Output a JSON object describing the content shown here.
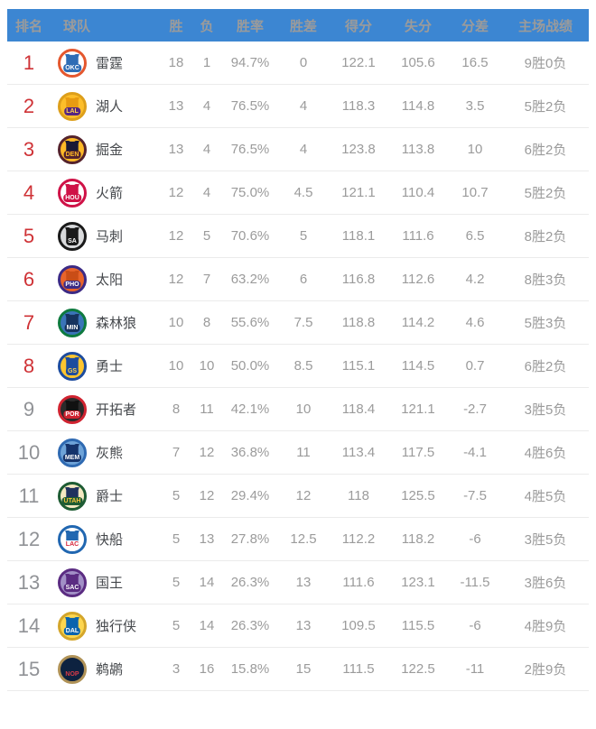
{
  "colors": {
    "header_bg": "#3c86d2",
    "header_text": "#ffffff",
    "rank_red": "#cf3236",
    "rank_gray": "#909296",
    "number_gray": "#9b9b9b",
    "team_text": "#45484c",
    "divider": "#ebebeb"
  },
  "table": {
    "headers": [
      "排名",
      "球队",
      "胜",
      "负",
      "胜率",
      "胜差",
      "得分",
      "失分",
      "分差",
      "主场战绩"
    ],
    "rows": [
      {
        "rank": "1",
        "team": "雷霆",
        "abbr": "OKC",
        "wins": "18",
        "losses": "1",
        "pct": "94.7%",
        "gb": "0",
        "pf": "122.1",
        "pa": "105.6",
        "diff": "16.5",
        "home": "9胜0负",
        "highlighted": true,
        "logo": {
          "ring": "#e4572e",
          "bg": "#ffffff",
          "jersey": "#2f6db5",
          "band": "#2f6db5",
          "abbr_color": "#ffffff"
        }
      },
      {
        "rank": "2",
        "team": "湖人",
        "abbr": "LAL",
        "wins": "13",
        "losses": "4",
        "pct": "76.5%",
        "gb": "4",
        "pf": "118.3",
        "pa": "114.8",
        "diff": "3.5",
        "home": "5胜2负",
        "highlighted": true,
        "logo": {
          "ring": "#dd9f1b",
          "bg": "#fdbe2a",
          "jersey": "#e89b12",
          "band": "#552583",
          "abbr_color": "#ffd34d"
        }
      },
      {
        "rank": "3",
        "team": "掘金",
        "abbr": "DEN",
        "wins": "13",
        "losses": "4",
        "pct": "76.5%",
        "gb": "4",
        "pf": "123.8",
        "pa": "113.8",
        "diff": "10",
        "home": "6胜2负",
        "highlighted": true,
        "logo": {
          "ring": "#55232c",
          "bg": "#fdb927",
          "jersey": "#191935",
          "band": "#55232c",
          "abbr_color": "#fdb927"
        }
      },
      {
        "rank": "4",
        "team": "火箭",
        "abbr": "HOU",
        "wins": "12",
        "losses": "4",
        "pct": "75.0%",
        "gb": "4.5",
        "pf": "121.1",
        "pa": "110.4",
        "diff": "10.7",
        "home": "5胜2负",
        "highlighted": true,
        "logo": {
          "ring": "#cf1247",
          "bg": "#ffffff",
          "jersey": "#cf1247",
          "band": "#cf1247",
          "abbr_color": "#ffffff"
        }
      },
      {
        "rank": "5",
        "team": "马刺",
        "abbr": "SA",
        "wins": "12",
        "losses": "5",
        "pct": "70.6%",
        "gb": "5",
        "pf": "118.1",
        "pa": "111.6",
        "diff": "6.5",
        "home": "8胜2负",
        "highlighted": true,
        "logo": {
          "ring": "#1a1a1a",
          "bg": "#d9dadc",
          "jersey": "#1a1a1a",
          "band": "#1a1a1a",
          "abbr_color": "#ffffff"
        }
      },
      {
        "rank": "6",
        "team": "太阳",
        "abbr": "PHO",
        "wins": "12",
        "losses": "7",
        "pct": "63.2%",
        "gb": "6",
        "pf": "116.8",
        "pa": "112.6",
        "diff": "4.2",
        "home": "8胜3负",
        "highlighted": true,
        "logo": {
          "ring": "#3c2a85",
          "bg": "#e8642a",
          "jersey": "#c94d17",
          "band": "#3c2a85",
          "abbr_color": "#ffffff"
        }
      },
      {
        "rank": "7",
        "team": "森林狼",
        "abbr": "MIN",
        "wins": "10",
        "losses": "8",
        "pct": "55.6%",
        "gb": "7.5",
        "pf": "118.8",
        "pa": "114.2",
        "diff": "4.6",
        "home": "5胜3负",
        "highlighted": true,
        "logo": {
          "ring": "#0e7a3f",
          "bg": "#3a74b8",
          "jersey": "#16335e",
          "band": "#16335e",
          "abbr_color": "#ffffff"
        }
      },
      {
        "rank": "8",
        "team": "勇士",
        "abbr": "GS",
        "wins": "10",
        "losses": "10",
        "pct": "50.0%",
        "gb": "8.5",
        "pf": "115.1",
        "pa": "114.5",
        "diff": "0.7",
        "home": "6胜2负",
        "highlighted": true,
        "logo": {
          "ring": "#1d4c9e",
          "bg": "#fdc52f",
          "jersey": "#1d4c9e",
          "band": "#1d4c9e",
          "abbr_color": "#ffd34d"
        }
      },
      {
        "rank": "9",
        "team": "开拓者",
        "abbr": "POR",
        "wins": "8",
        "losses": "11",
        "pct": "42.1%",
        "gb": "10",
        "pf": "118.4",
        "pa": "121.1",
        "diff": "-2.7",
        "home": "3胜5负",
        "highlighted": false,
        "logo": {
          "ring": "#d02330",
          "bg": "#2b2b2b",
          "jersey": "#111111",
          "band": "#d02330",
          "abbr_color": "#ffffff"
        }
      },
      {
        "rank": "10",
        "team": "灰熊",
        "abbr": "MEM",
        "wins": "7",
        "losses": "12",
        "pct": "36.8%",
        "gb": "11",
        "pf": "113.4",
        "pa": "117.5",
        "diff": "-4.1",
        "home": "4胜6负",
        "highlighted": false,
        "logo": {
          "ring": "#2f6ab2",
          "bg": "#6ea3d8",
          "jersey": "#15336b",
          "band": "#15336b",
          "abbr_color": "#ffffff"
        }
      },
      {
        "rank": "11",
        "team": "爵士",
        "abbr": "UTAH",
        "wins": "5",
        "losses": "12",
        "pct": "29.4%",
        "gb": "12",
        "pf": "118",
        "pa": "125.5",
        "diff": "-7.5",
        "home": "4胜5负",
        "highlighted": false,
        "logo": {
          "ring": "#1e5c33",
          "bg": "#f5e9c2",
          "jersey": "#20315e",
          "band": "#1e5c33",
          "abbr_color": "#f3c13d"
        }
      },
      {
        "rank": "12",
        "team": "快船",
        "abbr": "LAC",
        "wins": "5",
        "losses": "13",
        "pct": "27.8%",
        "gb": "12.5",
        "pf": "112.2",
        "pa": "118.2",
        "diff": "-6",
        "home": "3胜5负",
        "highlighted": false,
        "logo": {
          "ring": "#2167b1",
          "bg": "#ffffff",
          "jersey": "#2167b1",
          "band": "#ffffff",
          "abbr_color": "#d6273c"
        }
      },
      {
        "rank": "13",
        "team": "国王",
        "abbr": "SAC",
        "wins": "5",
        "losses": "14",
        "pct": "26.3%",
        "gb": "13",
        "pf": "111.6",
        "pa": "123.1",
        "diff": "-11.5",
        "home": "3胜6负",
        "highlighted": false,
        "logo": {
          "ring": "#5b2c82",
          "bg": "#a290c6",
          "jersey": "#5b2c82",
          "band": "#5b2c82",
          "abbr_color": "#ffffff"
        }
      },
      {
        "rank": "14",
        "team": "独行侠",
        "abbr": "DAL",
        "wins": "5",
        "losses": "14",
        "pct": "26.3%",
        "gb": "13",
        "pf": "109.5",
        "pa": "115.5",
        "diff": "-6",
        "home": "4胜9负",
        "highlighted": false,
        "logo": {
          "ring": "#d4a62b",
          "bg": "#fdd64f",
          "jersey": "#0a63ae",
          "band": "#0a63ae",
          "abbr_color": "#ffffff"
        }
      },
      {
        "rank": "15",
        "team": "鹈鹕",
        "abbr": "NOP",
        "wins": "3",
        "losses": "16",
        "pct": "15.8%",
        "gb": "15",
        "pf": "111.5",
        "pa": "122.5",
        "diff": "-11",
        "home": "2胜9负",
        "highlighted": false,
        "logo": {
          "ring": "#b09257",
          "bg": "#0d2240",
          "jersey": "#0d2240",
          "band": "#0d2240",
          "abbr_color": "#d93a47"
        }
      }
    ]
  }
}
